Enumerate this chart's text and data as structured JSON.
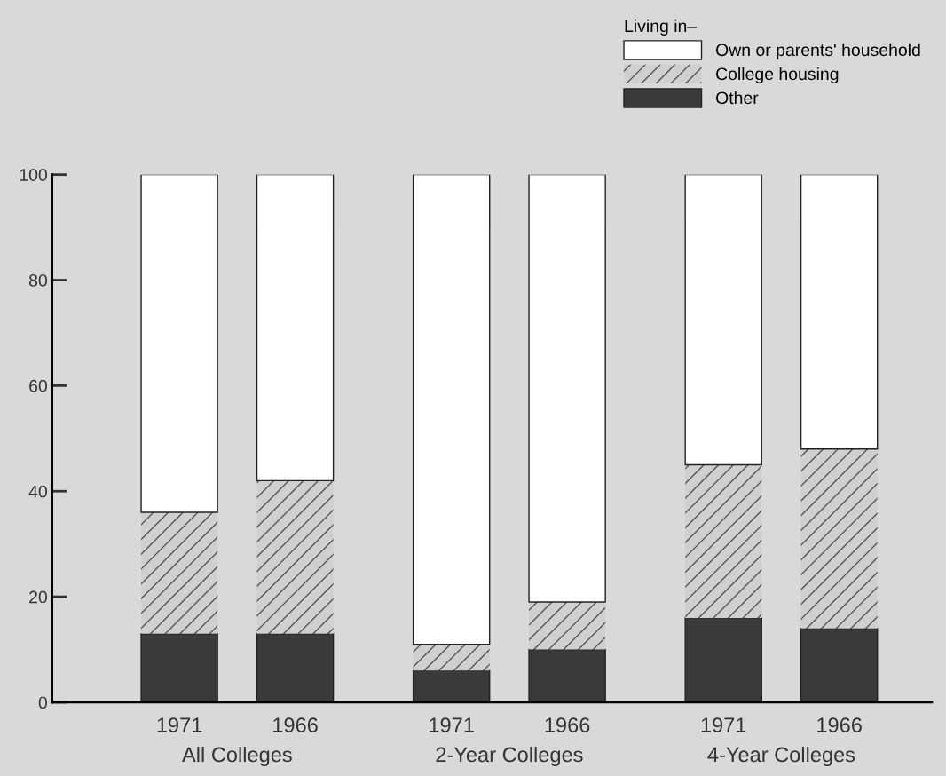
{
  "chart_data": {
    "type": "bar",
    "stacked": true,
    "legend_title": "Living in–",
    "legend": "top right",
    "categories": [
      "1971",
      "1966",
      "1971",
      "1966",
      "1971",
      "1966"
    ],
    "series": [
      {
        "name": "Other",
        "color": "#3a3a3a",
        "values": [
          13,
          13,
          6,
          10,
          16,
          14
        ]
      },
      {
        "name": "College housing",
        "color": "#d0d0d0",
        "values": [
          23,
          29,
          5,
          9,
          29,
          34
        ]
      },
      {
        "name": "Own or parents' household",
        "color": "#ffffff",
        "values": [
          64,
          58,
          89,
          81,
          55,
          52
        ]
      }
    ],
    "annotations": [
      "All Colleges",
      "2-Year Colleges",
      "4-Year Colleges"
    ],
    "ylim": [
      0,
      100
    ],
    "yticks": [
      0,
      20,
      40,
      60,
      80,
      100
    ],
    "grid": false
  }
}
